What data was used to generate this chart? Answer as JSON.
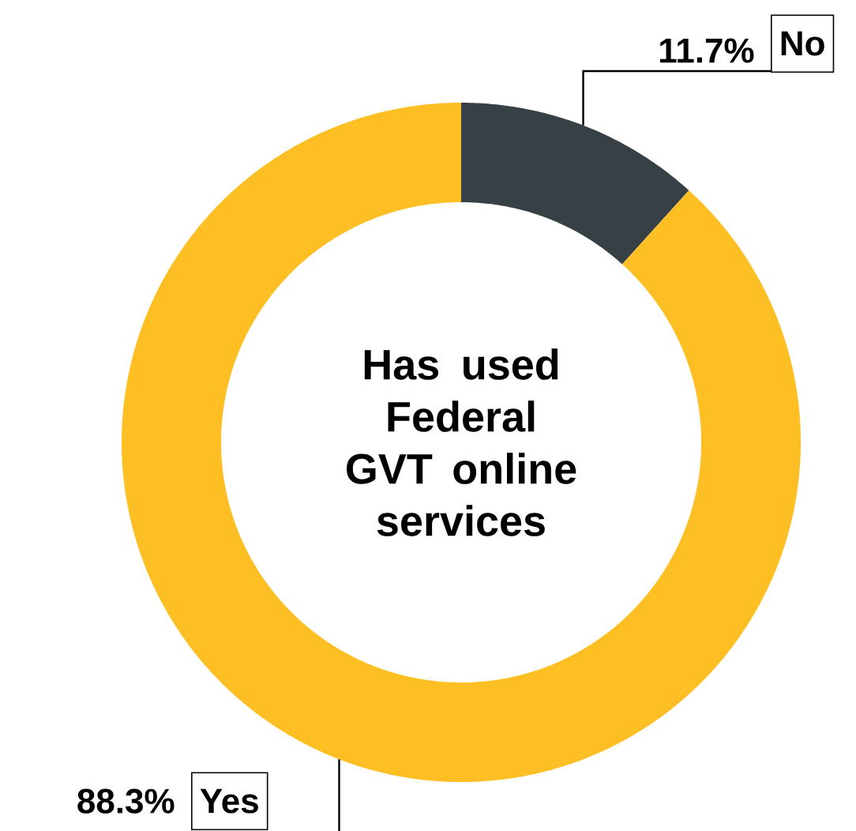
{
  "chart_data": {
    "type": "donut",
    "title": "Has used Federal GVT online services",
    "categories": [
      "No",
      "Yes"
    ],
    "values": [
      11.7,
      88.3
    ],
    "colors": [
      "#374145",
      "#FDBF24"
    ],
    "value_labels": [
      "11.7%",
      "88.3%"
    ]
  }
}
